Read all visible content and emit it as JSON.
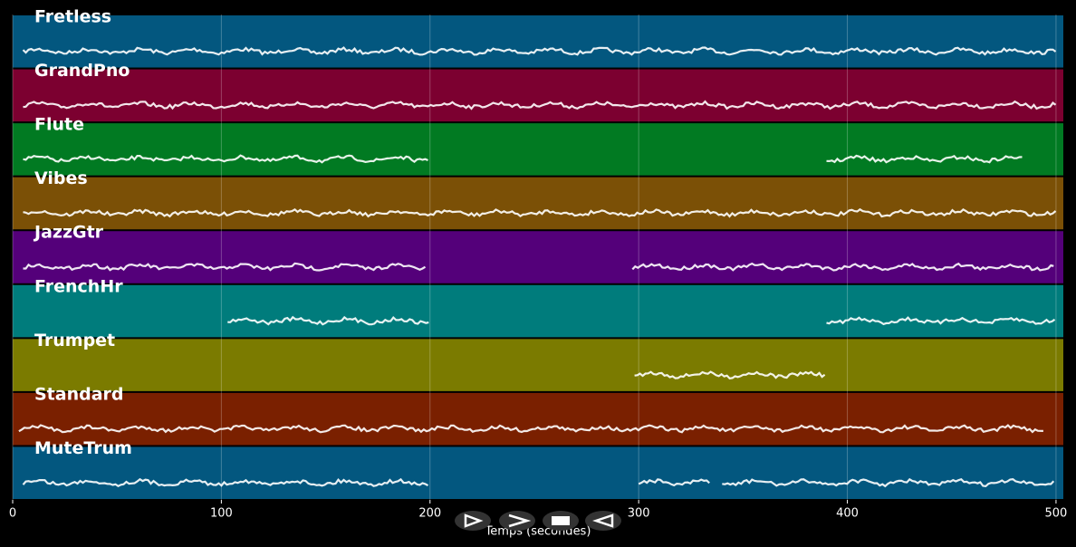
{
  "chart_data": {
    "type": "timeline",
    "xlabel": "Temps (secondes)",
    "xlim": [
      0,
      503.5
    ],
    "xticks": [
      0,
      100,
      200,
      300,
      400,
      500
    ],
    "grid": true,
    "tracks": [
      {
        "name": "Fretless",
        "color": "#03577f",
        "segments": [
          [
            5,
            500
          ]
        ]
      },
      {
        "name": "GrandPno",
        "color": "#7c0030",
        "segments": [
          [
            5,
            500
          ]
        ]
      },
      {
        "name": "Flute",
        "color": "#017a22",
        "segments": [
          [
            5,
            200
          ],
          [
            390,
            485
          ]
        ]
      },
      {
        "name": "Vibes",
        "color": "#7b5006",
        "segments": [
          [
            5,
            500
          ]
        ]
      },
      {
        "name": "JazzGtr",
        "color": "#54007a",
        "segments": [
          [
            5,
            198
          ],
          [
            297,
            500
          ]
        ]
      },
      {
        "name": "FrenchHr",
        "color": "#007c7c",
        "segments": [
          [
            103,
            200
          ],
          [
            390,
            500
          ]
        ]
      },
      {
        "name": "Trumpet",
        "color": "#7b7b00",
        "segments": [
          [
            298,
            390
          ]
        ]
      },
      {
        "name": "Standard",
        "color": "#7a2000",
        "segments": [
          [
            3,
            495
          ]
        ]
      },
      {
        "name": "MuteTrum",
        "color": "#03577f",
        "segments": [
          [
            5,
            200
          ],
          [
            300,
            335
          ],
          [
            340,
            500
          ]
        ]
      }
    ]
  }
}
